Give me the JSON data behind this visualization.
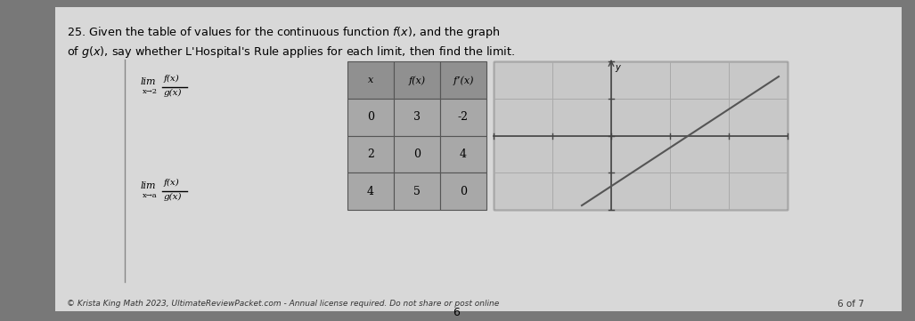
{
  "outer_bg": "#787878",
  "page_bg": "#d8d8d8",
  "title_line1": "25. Given the table of values for the continuous function $f(x)$, and the graph",
  "title_line2": "of $g(x)$, say whether L'Hospital's Rule applies for each limit, then find the limit.",
  "limit1_lim": "lim",
  "limit1_sub": "x→2",
  "limit1_frac_num": "f(x)",
  "limit1_frac_den": "g(x)",
  "limit2_lim": "lim",
  "limit2_sub": "x→a",
  "limit2_frac_num": "f(x)",
  "limit2_frac_den": "g(x)",
  "table_headers": [
    "x",
    "f(x)",
    "f’(x)"
  ],
  "table_data": [
    [
      "0",
      "3",
      "-2"
    ],
    [
      "2",
      "0",
      "4"
    ],
    [
      "4",
      "5",
      "0"
    ]
  ],
  "table_cell_bg": "#a8a8a8",
  "table_header_bg": "#909090",
  "table_border": "#555555",
  "graph_bg": "#c8c8c8",
  "graph_border": "#555555",
  "graph_grid_color": "#aaaaaa",
  "graph_axis_color": "#444444",
  "graph_line_color": "#555555",
  "footer_text": "© Krista King Math 2023, UltimateReviewPacket.com - Annual license required. Do not share or post online",
  "page_num": "6 of 7",
  "page_bottom_num": "6",
  "divider_color": "#888888"
}
